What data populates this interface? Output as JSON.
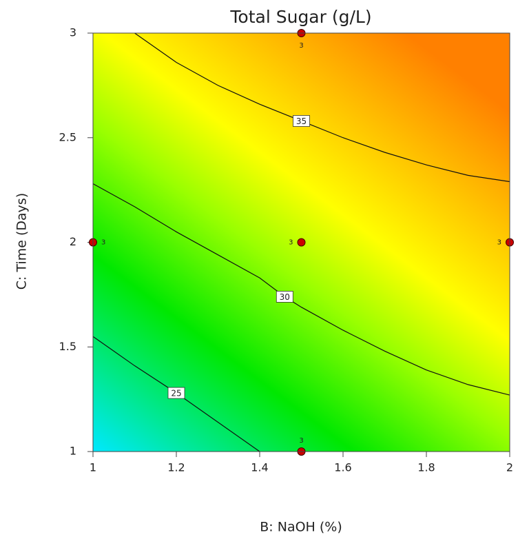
{
  "chart_data": {
    "type": "contour",
    "title": "Total Sugar (g/L)",
    "x_label": "B: NaOH (%)",
    "y_label": "C: Time (Days)",
    "xlim": [
      1,
      2
    ],
    "ylim": [
      1,
      3
    ],
    "xticks": [
      1,
      1.2,
      1.4,
      1.6,
      1.8,
      2
    ],
    "yticks": [
      1,
      1.5,
      2,
      2.5,
      3
    ],
    "contours": [
      {
        "level": 25,
        "x": [
          1,
          1.1,
          1.2,
          1.3,
          1.4
        ],
        "y": [
          1.55,
          1.41,
          1.28,
          1.14,
          1.0
        ]
      },
      {
        "level": 30,
        "x": [
          1,
          1.1,
          1.2,
          1.3,
          1.4,
          1.46,
          1.5,
          1.6,
          1.7,
          1.8,
          1.9,
          2
        ],
        "y": [
          2.28,
          2.17,
          2.05,
          1.94,
          1.83,
          1.74,
          1.69,
          1.58,
          1.48,
          1.39,
          1.32,
          1.27
        ]
      },
      {
        "level": 35,
        "x": [
          1.1,
          1.2,
          1.3,
          1.4,
          1.5,
          1.6,
          1.7,
          1.8,
          1.9,
          2
        ],
        "y": [
          3,
          2.86,
          2.75,
          2.66,
          2.58,
          2.5,
          2.43,
          2.37,
          2.32,
          2.29
        ]
      }
    ],
    "points": {
      "x": [
        1.5,
        1,
        1.5,
        2,
        1.5
      ],
      "y": [
        3,
        2,
        2,
        2,
        1
      ],
      "replicates": [
        3,
        3,
        3,
        3,
        3
      ],
      "color": "#cc0000"
    }
  }
}
